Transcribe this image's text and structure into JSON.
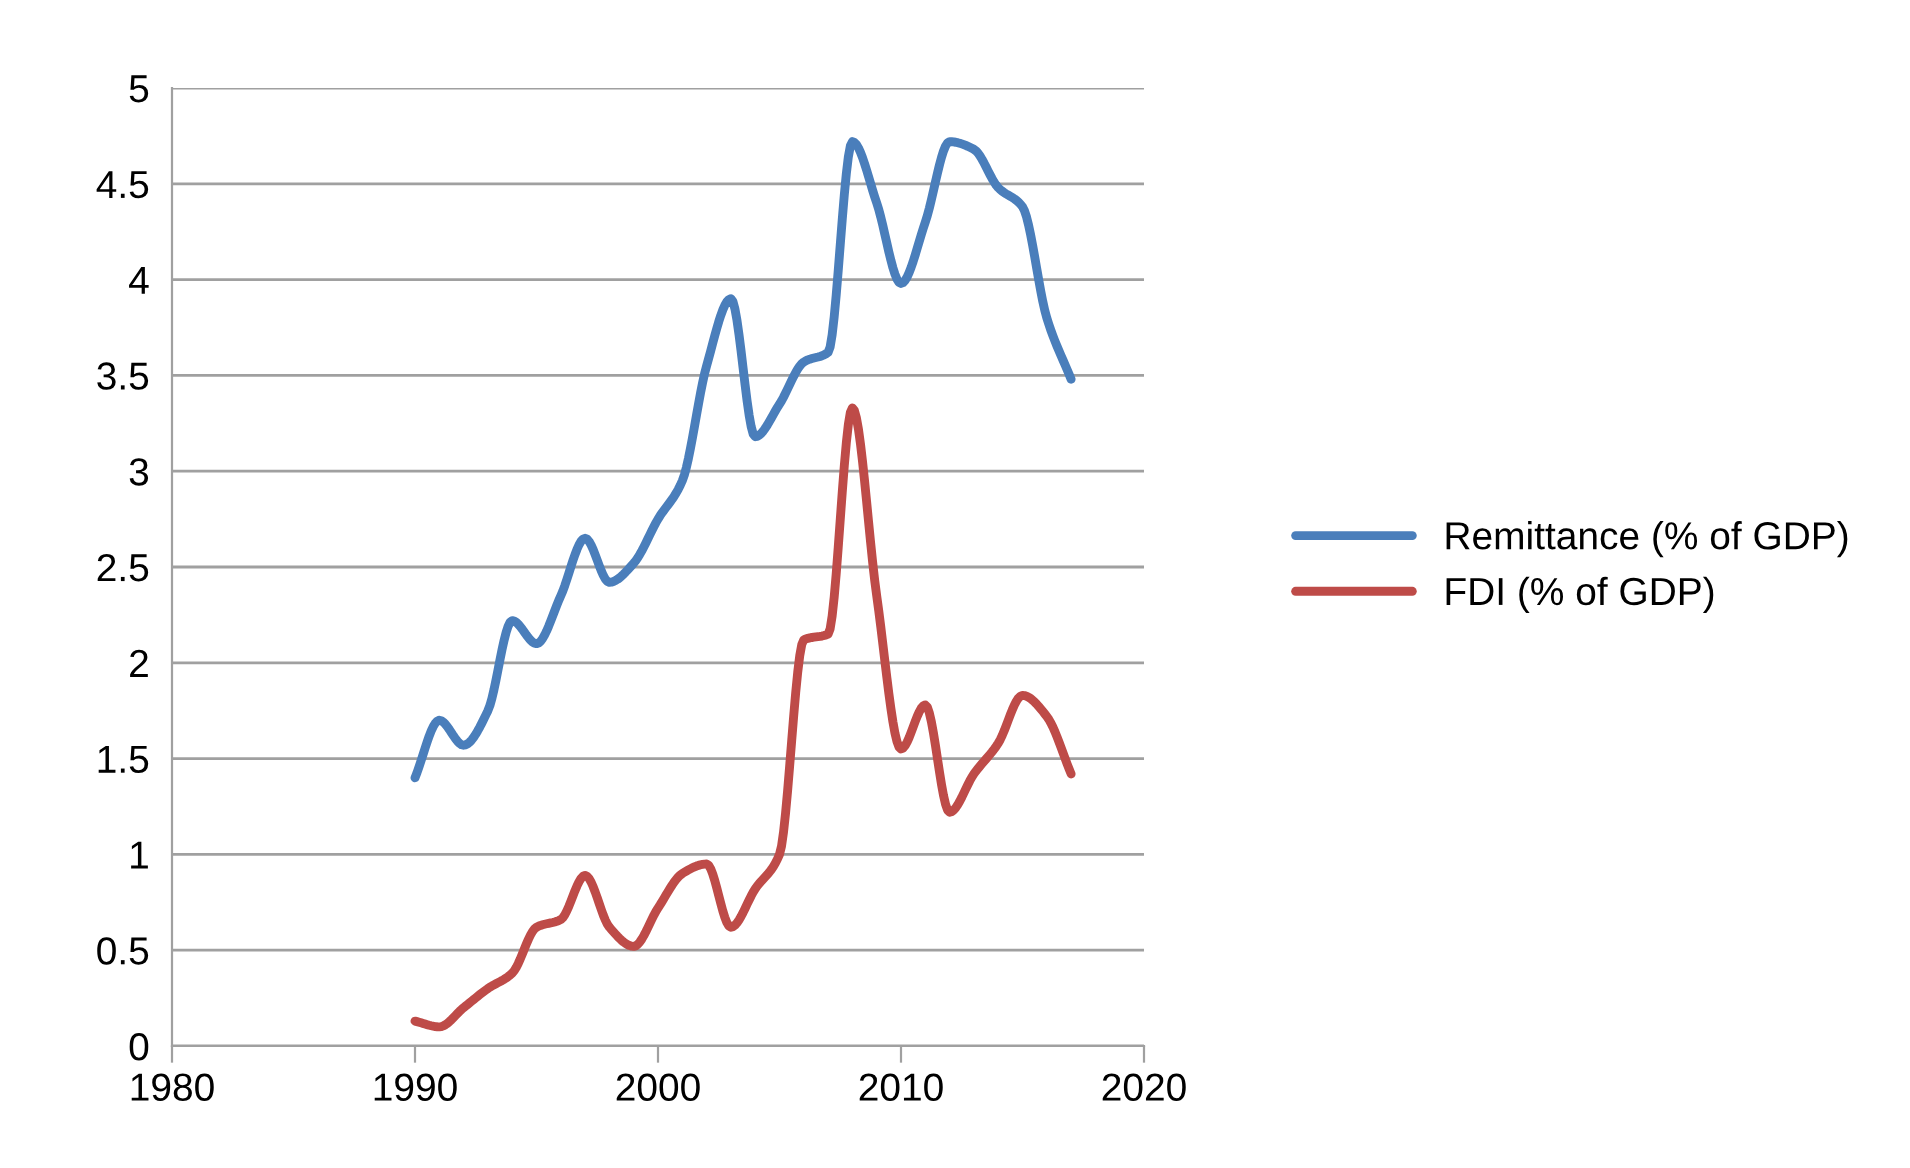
{
  "chart_data": {
    "type": "line",
    "x": [
      1990,
      1991,
      1992,
      1993,
      1994,
      1995,
      1996,
      1997,
      1998,
      1999,
      2000,
      2001,
      2002,
      2003,
      2004,
      2005,
      2006,
      2007,
      2008,
      2009,
      2010,
      2011,
      2012,
      2013,
      2014,
      2015,
      2016,
      2017
    ],
    "series": [
      {
        "name": "Remittance (% of GDP)",
        "color": "#4a7ebb",
        "values": [
          1.4,
          1.7,
          1.57,
          1.75,
          2.22,
          2.1,
          2.35,
          2.65,
          2.42,
          2.52,
          2.75,
          2.95,
          3.55,
          3.9,
          3.18,
          3.35,
          3.57,
          3.62,
          4.72,
          4.4,
          3.98,
          4.3,
          4.72,
          4.68,
          4.48,
          4.38,
          3.8,
          3.48
        ]
      },
      {
        "name": "FDI (% of GDP)",
        "color": "#be4b48",
        "values": [
          0.13,
          0.1,
          0.2,
          0.3,
          0.38,
          0.62,
          0.66,
          0.89,
          0.62,
          0.52,
          0.72,
          0.9,
          0.95,
          0.62,
          0.82,
          1.0,
          2.12,
          2.15,
          3.33,
          2.35,
          1.55,
          1.78,
          1.22,
          1.42,
          1.58,
          1.83,
          1.72,
          1.42
        ]
      }
    ],
    "xlim": [
      1980,
      2020
    ],
    "xticks": [
      1980,
      1990,
      2000,
      2010,
      2020
    ],
    "ylim": [
      0,
      5
    ],
    "yticks": [
      0,
      0.5,
      1,
      1.5,
      2,
      2.5,
      3,
      3.5,
      4,
      4.5,
      5
    ],
    "grid": "y",
    "legend": "right",
    "marker": "none",
    "line_style": "solid"
  }
}
